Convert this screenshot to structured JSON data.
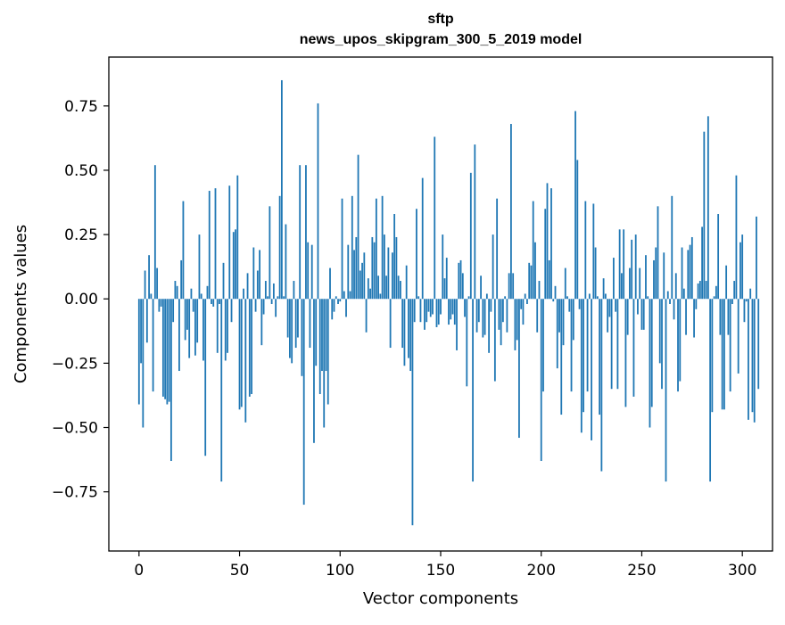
{
  "chart_data": {
    "type": "bar",
    "title": "sftp",
    "subtitle": "news_upos_skipgram_300_5_2019 model",
    "xlabel": "Vector components",
    "ylabel": "Components values",
    "xlim": [
      -15,
      315
    ],
    "ylim": [
      -0.98,
      0.94
    ],
    "xticks": [
      0,
      50,
      100,
      150,
      200,
      250,
      300
    ],
    "xtick_labels": [
      "0",
      "50",
      "100",
      "150",
      "200",
      "250",
      "300"
    ],
    "yticks": [
      -0.75,
      -0.5,
      -0.25,
      0.0,
      0.25,
      0.5,
      0.75
    ],
    "ytick_labels": [
      "−0.75",
      "−0.50",
      "−0.25",
      "0.00",
      "0.25",
      "0.50",
      "0.75"
    ],
    "bar_color": "#1f77b4",
    "values": [
      -0.41,
      -0.25,
      -0.5,
      0.11,
      -0.17,
      0.17,
      0.02,
      -0.36,
      0.52,
      0.12,
      -0.05,
      -0.03,
      -0.38,
      -0.39,
      -0.41,
      -0.4,
      -0.63,
      -0.09,
      0.07,
      0.05,
      -0.28,
      0.15,
      0.38,
      -0.16,
      -0.12,
      -0.23,
      0.04,
      -0.05,
      -0.22,
      -0.17,
      0.25,
      0.02,
      -0.24,
      -0.61,
      0.05,
      0.42,
      -0.02,
      -0.03,
      0.43,
      -0.21,
      -0.02,
      -0.71,
      0.14,
      -0.24,
      -0.21,
      0.44,
      -0.09,
      0.26,
      0.27,
      0.48,
      -0.43,
      -0.42,
      0.04,
      -0.48,
      0.1,
      -0.38,
      -0.37,
      0.2,
      -0.05,
      0.11,
      0.19,
      -0.18,
      -0.06,
      0.07,
      0.01,
      0.36,
      -0.02,
      0.06,
      -0.07,
      0.01,
      0.4,
      0.85,
      0.01,
      0.29,
      -0.15,
      -0.23,
      -0.25,
      0.07,
      -0.19,
      -0.15,
      0.52,
      -0.3,
      -0.8,
      0.52,
      0.22,
      -0.19,
      0.21,
      -0.56,
      -0.26,
      0.76,
      -0.37,
      -0.28,
      -0.5,
      -0.28,
      -0.41,
      0.12,
      -0.08,
      -0.05,
      0.01,
      -0.02,
      -0.01,
      0.39,
      0.03,
      -0.07,
      0.21,
      0.03,
      0.4,
      0.19,
      0.24,
      0.56,
      0.11,
      0.14,
      0.18,
      -0.13,
      0.08,
      0.04,
      0.24,
      0.22,
      0.39,
      0.09,
      0.02,
      0.4,
      0.25,
      0.09,
      0.2,
      -0.19,
      0.18,
      0.33,
      0.24,
      0.09,
      0.07,
      -0.19,
      -0.26,
      0.13,
      -0.23,
      -0.28,
      -0.88,
      -0.09,
      0.35,
      0.01,
      -0.09,
      0.47,
      -0.12,
      -0.09,
      -0.05,
      -0.07,
      -0.06,
      0.63,
      -0.11,
      -0.1,
      -0.06,
      0.25,
      0.08,
      0.16,
      -0.1,
      -0.08,
      -0.06,
      -0.1,
      -0.2,
      0.14,
      0.15,
      0.1,
      -0.07,
      -0.34,
      0.01,
      0.49,
      -0.71,
      0.6,
      -0.13,
      -0.09,
      0.09,
      -0.15,
      -0.14,
      0.02,
      -0.21,
      -0.05,
      0.25,
      -0.32,
      0.39,
      -0.12,
      -0.18,
      -0.09,
      0.01,
      -0.13,
      0.1,
      0.68,
      0.1,
      -0.2,
      -0.16,
      -0.54,
      -0.04,
      -0.1,
      0.02,
      -0.02,
      0.14,
      0.13,
      0.38,
      0.22,
      -0.13,
      0.07,
      -0.63,
      -0.36,
      0.35,
      0.45,
      0.15,
      0.43,
      -0.01,
      0.05,
      -0.27,
      -0.13,
      -0.45,
      -0.18,
      0.12,
      0.01,
      -0.05,
      -0.36,
      -0.16,
      0.73,
      0.54,
      -0.04,
      -0.52,
      -0.44,
      0.38,
      -0.36,
      0.02,
      -0.55,
      0.37,
      0.2,
      0.01,
      -0.45,
      -0.67,
      0.08,
      0.02,
      -0.13,
      -0.07,
      -0.35,
      0.16,
      -0.05,
      -0.35,
      0.27,
      0.1,
      0.27,
      -0.42,
      -0.14,
      0.12,
      0.23,
      -0.38,
      0.25,
      -0.06,
      0.12,
      -0.12,
      -0.12,
      0.17,
      0.01,
      -0.5,
      -0.42,
      0.15,
      0.2,
      0.36,
      -0.25,
      -0.35,
      0.18,
      -0.71,
      0.03,
      -0.02,
      0.4,
      -0.08,
      0.1,
      -0.36,
      -0.32,
      0.2,
      0.04,
      -0.14,
      0.19,
      0.21,
      0.24,
      -0.15,
      -0.04,
      0.06,
      0.07,
      0.28,
      0.65,
      0.07,
      0.71,
      -0.71,
      -0.44,
      0.01,
      0.05,
      0.33,
      -0.14,
      -0.43,
      -0.43,
      0.13,
      -0.14,
      -0.36,
      -0.02,
      0.07,
      0.48,
      -0.29,
      0.22,
      0.25,
      -0.09,
      -0.01,
      -0.47,
      0.04,
      -0.44,
      -0.48,
      0.32,
      -0.35
    ]
  }
}
